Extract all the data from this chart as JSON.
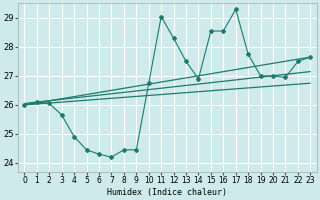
{
  "background_color": "#ceeaea",
  "grid_color": "#ffffff",
  "line_color": "#1e7a6e",
  "xlabel": "Humidex (Indice chaleur)",
  "xlim": [
    -0.5,
    23.5
  ],
  "ylim": [
    23.7,
    29.5
  ],
  "yticks": [
    24,
    25,
    26,
    27,
    28,
    29
  ],
  "xticks": [
    0,
    1,
    2,
    3,
    4,
    5,
    6,
    7,
    8,
    9,
    10,
    11,
    12,
    13,
    14,
    15,
    16,
    17,
    18,
    19,
    20,
    21,
    22,
    23
  ],
  "main_series": {
    "x": [
      0,
      1,
      2,
      3,
      4,
      5,
      6,
      7,
      8,
      9,
      10,
      11,
      12,
      13,
      14,
      15,
      16,
      17,
      18,
      19,
      20,
      21,
      22,
      23
    ],
    "y": [
      26.0,
      26.1,
      26.05,
      25.65,
      24.9,
      24.45,
      24.3,
      24.2,
      24.45,
      24.45,
      26.75,
      29.05,
      28.3,
      27.5,
      26.9,
      28.55,
      28.55,
      29.3,
      27.75,
      27.0,
      27.0,
      26.95,
      27.5,
      27.65
    ]
  },
  "trend_lines": [
    {
      "x": [
        0,
        23
      ],
      "y": [
        26.0,
        27.65
      ]
    },
    {
      "x": [
        0,
        23
      ],
      "y": [
        26.05,
        27.15
      ]
    },
    {
      "x": [
        0,
        23
      ],
      "y": [
        26.0,
        26.75
      ]
    }
  ]
}
